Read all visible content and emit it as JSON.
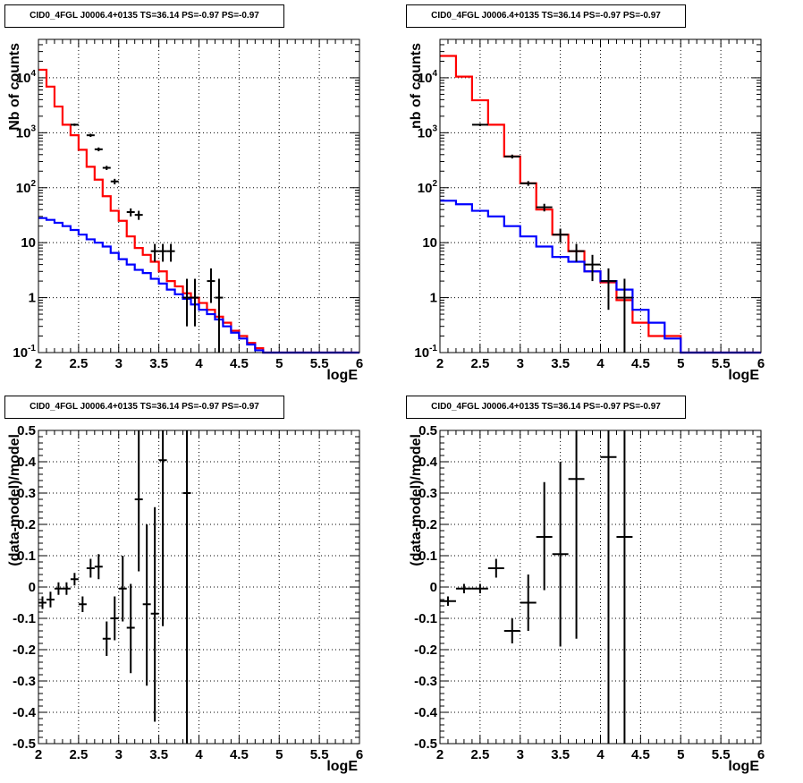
{
  "colors": {
    "data": "#000000",
    "total_model": "#ff0000",
    "component_model": "#0000ff",
    "grid": "#000000"
  },
  "chart_data": [
    {
      "type": "histogram",
      "title": "CID0_4FGL J0006.4+0135 TS=36.14 PS=-0.97 PS=-0.97",
      "xlabel": "logE",
      "ylabel": "Nb of counts",
      "xlim": [
        2,
        6
      ],
      "ylim": [
        0.1,
        50000
      ],
      "log_y": true,
      "grid": true,
      "x_ticks": [
        "2",
        "2.5",
        "3",
        "3.5",
        "4",
        "4.5",
        "5",
        "5.5",
        "6"
      ],
      "y_ticks": [
        "10^-1",
        "1",
        "10",
        "10^2",
        "10^3",
        "10^4"
      ],
      "bin_edges": [
        2.0,
        2.1,
        2.2,
        2.3,
        2.4,
        2.5,
        2.6,
        2.7,
        2.8,
        2.9,
        3.0,
        3.1,
        3.2,
        3.3,
        3.4,
        3.5,
        3.6,
        3.7,
        3.8,
        3.9,
        4.0,
        4.1,
        4.2,
        4.3,
        4.4,
        4.5,
        4.6,
        4.7,
        4.8,
        4.9,
        5.0,
        5.1,
        5.2,
        5.3,
        5.4,
        5.5,
        5.6,
        5.7,
        5.8,
        5.9,
        6.0
      ],
      "series": [
        {
          "name": "",
          "kind": "step",
          "color": "red",
          "values": [
            14000,
            6900,
            3000,
            1400,
            900,
            490,
            240,
            140,
            70,
            38,
            25,
            13,
            8,
            6,
            4.5,
            3,
            2,
            1.6,
            1.2,
            1.0,
            0.8,
            0.6,
            0.45,
            0.35,
            0.25,
            0.2,
            0.15,
            0.12,
            0.1,
            0.1,
            0.1,
            0.1,
            0.1,
            0.1,
            0.1,
            0.1,
            0.1,
            0.1,
            0.1,
            0.1
          ]
        },
        {
          "name": "",
          "kind": "step",
          "color": "blue",
          "values": [
            28,
            26,
            23,
            20,
            17,
            14,
            11.5,
            10,
            8.5,
            6.5,
            5,
            4,
            3.2,
            2.8,
            2.2,
            1.8,
            1.4,
            1.15,
            0.95,
            0.75,
            0.6,
            0.5,
            0.4,
            0.3,
            0.23,
            0.18,
            0.14,
            0.11,
            0.1,
            0.1,
            0.1,
            0.1,
            0.1,
            0.1,
            0.1,
            0.1,
            0.1,
            0.1,
            0.1,
            0.1
          ]
        },
        {
          "name": "",
          "kind": "points",
          "color": "black",
          "points": [
            {
              "x": 2.45,
              "xerr": 0.05,
              "y": 1400,
              "ylo": 1330,
              "yhi": 1470
            },
            {
              "x": 2.65,
              "xerr": 0.05,
              "y": 900,
              "ylo": 840,
              "yhi": 960
            },
            {
              "x": 2.75,
              "xerr": 0.05,
              "y": 500,
              "ylo": 460,
              "yhi": 540
            },
            {
              "x": 2.85,
              "xerr": 0.05,
              "y": 230,
              "ylo": 210,
              "yhi": 250
            },
            {
              "x": 2.95,
              "xerr": 0.05,
              "y": 130,
              "ylo": 115,
              "yhi": 145
            },
            {
              "x": 3.15,
              "xerr": 0.05,
              "y": 36,
              "ylo": 30,
              "yhi": 42
            },
            {
              "x": 3.25,
              "xerr": 0.05,
              "y": 32,
              "ylo": 26,
              "yhi": 38
            },
            {
              "x": 3.45,
              "xerr": 0.05,
              "y": 7,
              "ylo": 4.5,
              "yhi": 9.5
            },
            {
              "x": 3.55,
              "xerr": 0.05,
              "y": 7,
              "ylo": 4.5,
              "yhi": 9.5
            },
            {
              "x": 3.65,
              "xerr": 0.05,
              "y": 7,
              "ylo": 4.5,
              "yhi": 9.5
            },
            {
              "x": 3.85,
              "xerr": 0.05,
              "y": 1,
              "ylo": 0.3,
              "yhi": 2.2
            },
            {
              "x": 3.95,
              "xerr": 0.05,
              "y": 1,
              "ylo": 0.3,
              "yhi": 2.2
            },
            {
              "x": 4.15,
              "xerr": 0.05,
              "y": 2,
              "ylo": 0.8,
              "yhi": 3.4
            },
            {
              "x": 4.25,
              "xerr": 0.05,
              "y": 1,
              "ylo": 0.1,
              "yhi": 2.2
            }
          ]
        }
      ]
    },
    {
      "type": "histogram",
      "title": "CID0_4FGL J0006.4+0135 TS=36.14 PS=-0.97 PS=-0.97",
      "xlabel": "logE",
      "ylabel": "nb of counts",
      "xlim": [
        2,
        6
      ],
      "ylim": [
        0.1,
        50000
      ],
      "log_y": true,
      "grid": true,
      "x_ticks": [
        "2",
        "2.5",
        "3",
        "3.5",
        "4",
        "4.5",
        "5",
        "5.5",
        "6"
      ],
      "y_ticks": [
        "10^-1",
        "1",
        "10",
        "10^2",
        "10^3",
        "10^4"
      ],
      "bin_edges": [
        2.0,
        2.2,
        2.4,
        2.6,
        2.8,
        3.0,
        3.2,
        3.4,
        3.6,
        3.8,
        4.0,
        4.2,
        4.4,
        4.6,
        4.8,
        5.0,
        5.2,
        5.4,
        5.6,
        5.8,
        6.0
      ],
      "series": [
        {
          "name": "",
          "kind": "step",
          "color": "red",
          "values": [
            25000,
            10500,
            3900,
            1400,
            370,
            120,
            40,
            14,
            7,
            3,
            1.9,
            0.9,
            0.35,
            0.2,
            0.2,
            0.1,
            0.1,
            0.1,
            0.1,
            0.1
          ]
        },
        {
          "name": "",
          "kind": "step",
          "color": "blue",
          "values": [
            58,
            50,
            38,
            30,
            20,
            13,
            8.5,
            5.5,
            4.5,
            3,
            2,
            1.4,
            0.6,
            0.35,
            0.18,
            0.1,
            0.1,
            0.1,
            0.1,
            0.1
          ]
        },
        {
          "name": "",
          "kind": "points",
          "color": "black",
          "points": [
            {
              "x": 2.5,
              "xerr": 0.1,
              "y": 1400,
              "ylo": 1320,
              "yhi": 1480
            },
            {
              "x": 2.9,
              "xerr": 0.1,
              "y": 370,
              "ylo": 340,
              "yhi": 400
            },
            {
              "x": 3.1,
              "xerr": 0.1,
              "y": 120,
              "ylo": 108,
              "yhi": 132
            },
            {
              "x": 3.3,
              "xerr": 0.1,
              "y": 44,
              "ylo": 37,
              "yhi": 51
            },
            {
              "x": 3.5,
              "xerr": 0.1,
              "y": 14,
              "ylo": 10,
              "yhi": 18
            },
            {
              "x": 3.7,
              "xerr": 0.1,
              "y": 7,
              "ylo": 4.5,
              "yhi": 9.5
            },
            {
              "x": 3.9,
              "xerr": 0.1,
              "y": 4,
              "ylo": 2,
              "yhi": 6
            },
            {
              "x": 4.1,
              "xerr": 0.1,
              "y": 2,
              "ylo": 0.6,
              "yhi": 3.4
            },
            {
              "x": 4.3,
              "xerr": 0.1,
              "y": 1,
              "ylo": 0.1,
              "yhi": 2.2
            }
          ]
        }
      ]
    },
    {
      "type": "scatter",
      "title": "CID0_4FGL J0006.4+0135 TS=36.14 PS=-0.97 PS=-0.97",
      "xlabel": "logE",
      "ylabel": "(data-model)/model",
      "xlim": [
        2,
        6
      ],
      "ylim": [
        -0.5,
        0.5
      ],
      "log_y": false,
      "grid": true,
      "x_ticks": [
        "2",
        "2.5",
        "3",
        "3.5",
        "4",
        "4.5",
        "5",
        "5.5",
        "6"
      ],
      "y_ticks": [
        "-0.5",
        "-0.4",
        "-0.3",
        "-0.2",
        "-0.1",
        "0",
        "0.1",
        "0.2",
        "0.3",
        "0.4",
        "0.5"
      ],
      "series": [
        {
          "name": "",
          "kind": "points",
          "color": "black",
          "points": [
            {
              "x": 2.05,
              "xerr": 0.05,
              "y": -0.05,
              "ylo": -0.07,
              "yhi": -0.03
            },
            {
              "x": 2.15,
              "xerr": 0.05,
              "y": -0.04,
              "ylo": -0.065,
              "yhi": -0.015
            },
            {
              "x": 2.25,
              "xerr": 0.05,
              "y": -0.005,
              "ylo": -0.025,
              "yhi": 0.015
            },
            {
              "x": 2.35,
              "xerr": 0.05,
              "y": -0.005,
              "ylo": -0.025,
              "yhi": 0.015
            },
            {
              "x": 2.45,
              "xerr": 0.05,
              "y": 0.025,
              "ylo": 0.005,
              "yhi": 0.045
            },
            {
              "x": 2.55,
              "xerr": 0.05,
              "y": -0.055,
              "ylo": -0.08,
              "yhi": -0.03
            },
            {
              "x": 2.65,
              "xerr": 0.05,
              "y": 0.06,
              "ylo": 0.03,
              "yhi": 0.09
            },
            {
              "x": 2.75,
              "xerr": 0.05,
              "y": 0.065,
              "ylo": 0.025,
              "yhi": 0.105
            },
            {
              "x": 2.85,
              "xerr": 0.05,
              "y": -0.165,
              "ylo": -0.22,
              "yhi": -0.11
            },
            {
              "x": 2.95,
              "xerr": 0.05,
              "y": -0.1,
              "ylo": -0.17,
              "yhi": -0.03
            },
            {
              "x": 3.05,
              "xerr": 0.05,
              "y": -0.005,
              "ylo": -0.11,
              "yhi": 0.1
            },
            {
              "x": 3.15,
              "xerr": 0.05,
              "y": -0.13,
              "ylo": -0.275,
              "yhi": 0.01
            },
            {
              "x": 3.25,
              "xerr": 0.05,
              "y": 0.28,
              "ylo": 0.05,
              "yhi": 0.5
            },
            {
              "x": 3.35,
              "xerr": 0.05,
              "y": -0.055,
              "ylo": -0.315,
              "yhi": 0.2
            },
            {
              "x": 3.45,
              "xerr": 0.05,
              "y": -0.085,
              "ylo": -0.43,
              "yhi": 0.255
            },
            {
              "x": 3.55,
              "xerr": 0.05,
              "y": 0.405,
              "ylo": -0.125,
              "yhi": 0.5
            },
            {
              "x": 3.85,
              "xerr": 0.05,
              "y": 0.3,
              "ylo": -0.5,
              "yhi": 0.5
            }
          ]
        }
      ]
    },
    {
      "type": "scatter",
      "title": "CID0_4FGL J0006.4+0135 TS=36.14 PS=-0.97 PS=-0.97",
      "xlabel": "logE",
      "ylabel": "(data-model)/model",
      "xlim": [
        2,
        6
      ],
      "ylim": [
        -0.5,
        0.5
      ],
      "log_y": false,
      "grid": true,
      "x_ticks": [
        "2",
        "2.5",
        "3",
        "3.5",
        "4",
        "4.5",
        "5",
        "5.5",
        "6"
      ],
      "y_ticks": [
        "-0.5",
        "-0.4",
        "-0.3",
        "-0.2",
        "-0.1",
        "0",
        "0.1",
        "0.2",
        "0.3",
        "0.4",
        "0.5"
      ],
      "series": [
        {
          "name": "",
          "kind": "points",
          "color": "black",
          "points": [
            {
              "x": 2.1,
              "xerr": 0.1,
              "y": -0.045,
              "ylo": -0.06,
              "yhi": -0.03
            },
            {
              "x": 2.3,
              "xerr": 0.1,
              "y": -0.005,
              "ylo": -0.02,
              "yhi": 0.01
            },
            {
              "x": 2.5,
              "xerr": 0.1,
              "y": -0.005,
              "ylo": -0.02,
              "yhi": 0.01
            },
            {
              "x": 2.7,
              "xerr": 0.1,
              "y": 0.06,
              "ylo": 0.03,
              "yhi": 0.09
            },
            {
              "x": 2.9,
              "xerr": 0.1,
              "y": -0.14,
              "ylo": -0.18,
              "yhi": -0.1
            },
            {
              "x": 3.1,
              "xerr": 0.1,
              "y": -0.05,
              "ylo": -0.14,
              "yhi": 0.04
            },
            {
              "x": 3.3,
              "xerr": 0.1,
              "y": 0.16,
              "ylo": -0.01,
              "yhi": 0.335
            },
            {
              "x": 3.5,
              "xerr": 0.1,
              "y": 0.105,
              "ylo": -0.19,
              "yhi": 0.4
            },
            {
              "x": 3.7,
              "xerr": 0.1,
              "y": 0.345,
              "ylo": -0.165,
              "yhi": 0.5
            },
            {
              "x": 4.1,
              "xerr": 0.1,
              "y": 0.415,
              "ylo": -0.5,
              "yhi": 0.5
            },
            {
              "x": 4.3,
              "xerr": 0.1,
              "y": 0.16,
              "ylo": -0.5,
              "yhi": 0.5
            }
          ]
        }
      ]
    }
  ]
}
